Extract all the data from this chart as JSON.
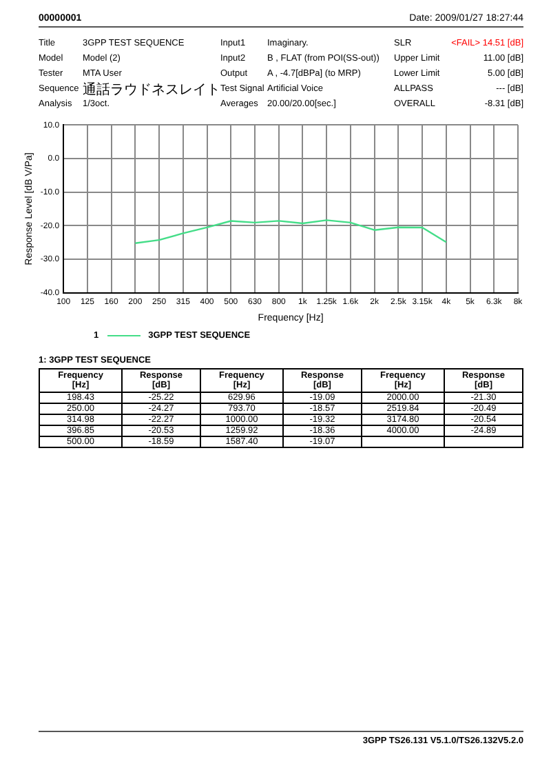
{
  "chart_data": {
    "type": "line",
    "xlabel": "Frequency [Hz]",
    "ylabel": "Response Level [dB V/Pa]",
    "categories": [
      "100",
      "125",
      "160",
      "200",
      "250",
      "315",
      "400",
      "500",
      "630",
      "800",
      "1k",
      "1.25k",
      "1.6k",
      "2k",
      "2.5k",
      "3.15k",
      "4k",
      "5k",
      "6.3k",
      "8k"
    ],
    "series": [
      {
        "name": "3GPP TEST SEQUENCE",
        "color": "#44dd88",
        "values": [
          null,
          null,
          null,
          -25.22,
          -24.27,
          -22.27,
          -20.53,
          -18.59,
          -19.09,
          -18.57,
          -19.32,
          -18.36,
          -19.07,
          -21.3,
          -20.49,
          -20.54,
          -24.89,
          null,
          null,
          null
        ]
      }
    ],
    "ylim": [
      -40,
      10
    ],
    "yticks": [
      {
        "value": -40,
        "label": "-40.0"
      },
      {
        "value": -30,
        "label": "-30.0"
      },
      {
        "value": -20,
        "label": "-20.0"
      },
      {
        "value": -10,
        "label": "-10.0"
      },
      {
        "value": 0,
        "label": "0.0"
      },
      {
        "value": 10,
        "label": "10.0"
      }
    ],
    "grid": true,
    "legend": "bottom",
    "marker": "none",
    "line_style": "solid",
    "annotations": [
      "00000001",
      "Date: 2009/01/27 18:27:44",
      "Title",
      "3GPP TEST SEQUENCE",
      "Input1",
      "Imaginary.",
      "SLR",
      "<FAIL> 14.51 [dB]",
      "Model",
      "Model (2)",
      "Input2",
      "B , FLAT (from POI(SS-out))",
      "Upper Limit",
      "11.00 [dB]",
      "Tester",
      "MTA User",
      "Output",
      "A , -4.7[dBPa] (to MRP)",
      "Lower Limit",
      "5.00 [dB]",
      "Sequence",
      "通話ラウドネスレイト",
      "Test Signal",
      "Artificial Voice",
      "ALLPASS",
      "--- [dB]",
      "Analysis",
      "1/3oct.",
      "Averages",
      "20.00/20.00[sec.]",
      "OVERALL",
      "-8.31 [dB]",
      "1",
      "1: 3GPP TEST SEQUENCE",
      "Frequency",
      "[Hz]",
      "Response",
      "[dB]",
      "3GPP TS26.131 V5.1.0/TS26.132V5.2.0",
      "198.43",
      "-25.22",
      "629.96",
      "-19.09",
      "2000.00",
      "-21.30",
      "250.00",
      "-24.27",
      "793.70",
      "-18.57",
      "2519.84",
      "-20.49",
      "314.98",
      "-22.27",
      "1000.00",
      "-19.32",
      "3174.80",
      "-20.54",
      "396.85",
      "-20.53",
      "1259.92",
      "-18.36",
      "4000.00",
      "-24.89",
      "500.00",
      "-18.59",
      "1587.40",
      "-19.07"
    ]
  }
}
